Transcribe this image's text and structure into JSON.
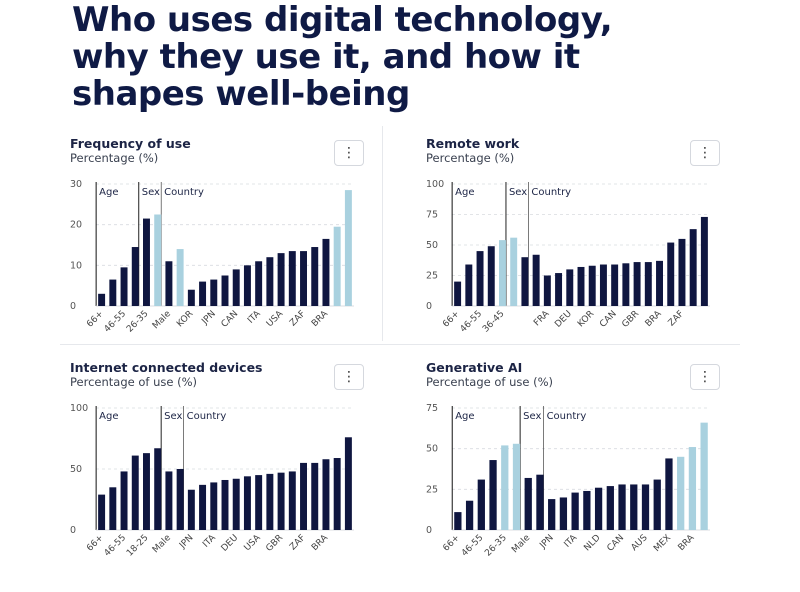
{
  "headline": {
    "line1": "Who uses digital technology,",
    "line2": "why they use it, and how it",
    "line3": "shapes well-being"
  },
  "menu_glyph": "⋮",
  "colors": {
    "dark": "#0f1640",
    "light": "#a9d1df"
  },
  "chart_data": [
    {
      "type": "bar",
      "title": "Frequency of use",
      "ylabel": "Percentage (%)",
      "ylim": [
        0,
        30
      ],
      "yticks": [
        "0",
        "10",
        "20",
        "30"
      ],
      "groups": [
        "Age",
        "Sex",
        "Country"
      ],
      "group_breaks": [
        4,
        6
      ],
      "values": [
        3,
        6.5,
        9.5,
        14.5,
        21.5,
        22.5,
        11,
        14,
        4,
        6,
        6.5,
        7.5,
        9,
        10,
        11,
        12,
        13,
        13.5,
        13.5,
        14.5,
        16.5,
        19.5,
        28.5
      ],
      "highlight": [
        5,
        7,
        21,
        22
      ],
      "xlabels": [
        "66+",
        "46-55",
        "26-35",
        "Male",
        "KOR",
        "JPN",
        "CAN",
        "ITA",
        "USA",
        "ZAF",
        "BRA"
      ],
      "xlabel_index": [
        0,
        2,
        4,
        6,
        8,
        10,
        12,
        14,
        16,
        18,
        20
      ]
    },
    {
      "type": "bar",
      "title": "Remote work",
      "ylabel": "Percentage (%)",
      "ylim": [
        0,
        100
      ],
      "yticks": [
        "0",
        "25",
        "50",
        "75",
        "100"
      ],
      "groups": [
        "Age",
        "Sex",
        "Country"
      ],
      "group_breaks": [
        5,
        7
      ],
      "values": [
        20,
        34,
        45,
        49,
        54,
        56,
        40,
        42,
        25,
        27,
        30,
        32,
        33,
        34,
        34,
        35,
        36,
        36,
        37,
        52,
        55,
        63,
        73
      ],
      "highlight": [
        4,
        5
      ],
      "xlabels": [
        "66+",
        "46-55",
        "36-45",
        "FRA",
        "DEU",
        "KOR",
        "CAN",
        "GBR",
        "BRA",
        "ZAF"
      ],
      "xlabel_index": [
        0,
        2,
        4,
        8,
        10,
        12,
        14,
        16,
        18,
        20
      ]
    },
    {
      "type": "bar",
      "title": "Internet connected devices",
      "ylabel": "Percentage of use (%)",
      "ylim": [
        0,
        100
      ],
      "yticks": [
        "0",
        "50",
        "100"
      ],
      "groups": [
        "Age",
        "Sex",
        "Country"
      ],
      "group_breaks": [
        6,
        8
      ],
      "values": [
        29,
        35,
        48,
        61,
        63,
        67,
        48,
        50,
        33,
        37,
        39,
        41,
        42,
        44,
        45,
        46,
        47,
        48,
        55,
        55,
        58,
        59,
        76
      ],
      "highlight": [],
      "xlabels": [
        "66+",
        "46-55",
        "18-25",
        "Male",
        "JPN",
        "ITA",
        "DEU",
        "USA",
        "GBR",
        "ZAF",
        "BRA"
      ],
      "xlabel_index": [
        0,
        2,
        4,
        6,
        8,
        10,
        12,
        14,
        16,
        18,
        20
      ]
    },
    {
      "type": "bar",
      "title": "Generative AI",
      "ylabel": "Percentage of use (%)",
      "ylim": [
        0,
        75
      ],
      "yticks": [
        "0",
        "25",
        "50",
        "75"
      ],
      "groups": [
        "Age",
        "Sex",
        "Country"
      ],
      "group_breaks": [
        6,
        8
      ],
      "values": [
        11,
        18,
        31,
        43,
        52,
        53,
        32,
        34,
        19,
        20,
        23,
        24,
        26,
        27,
        28,
        28,
        28,
        31,
        44,
        45,
        51,
        66
      ],
      "highlight": [
        4,
        5,
        19,
        20,
        21
      ],
      "xlabels": [
        "66+",
        "46-55",
        "26-35",
        "Male",
        "JPN",
        "ITA",
        "NLD",
        "CAN",
        "AUS",
        "MEX",
        "BRA"
      ],
      "xlabel_index": [
        0,
        2,
        4,
        6,
        8,
        10,
        12,
        14,
        16,
        18,
        20
      ]
    }
  ]
}
